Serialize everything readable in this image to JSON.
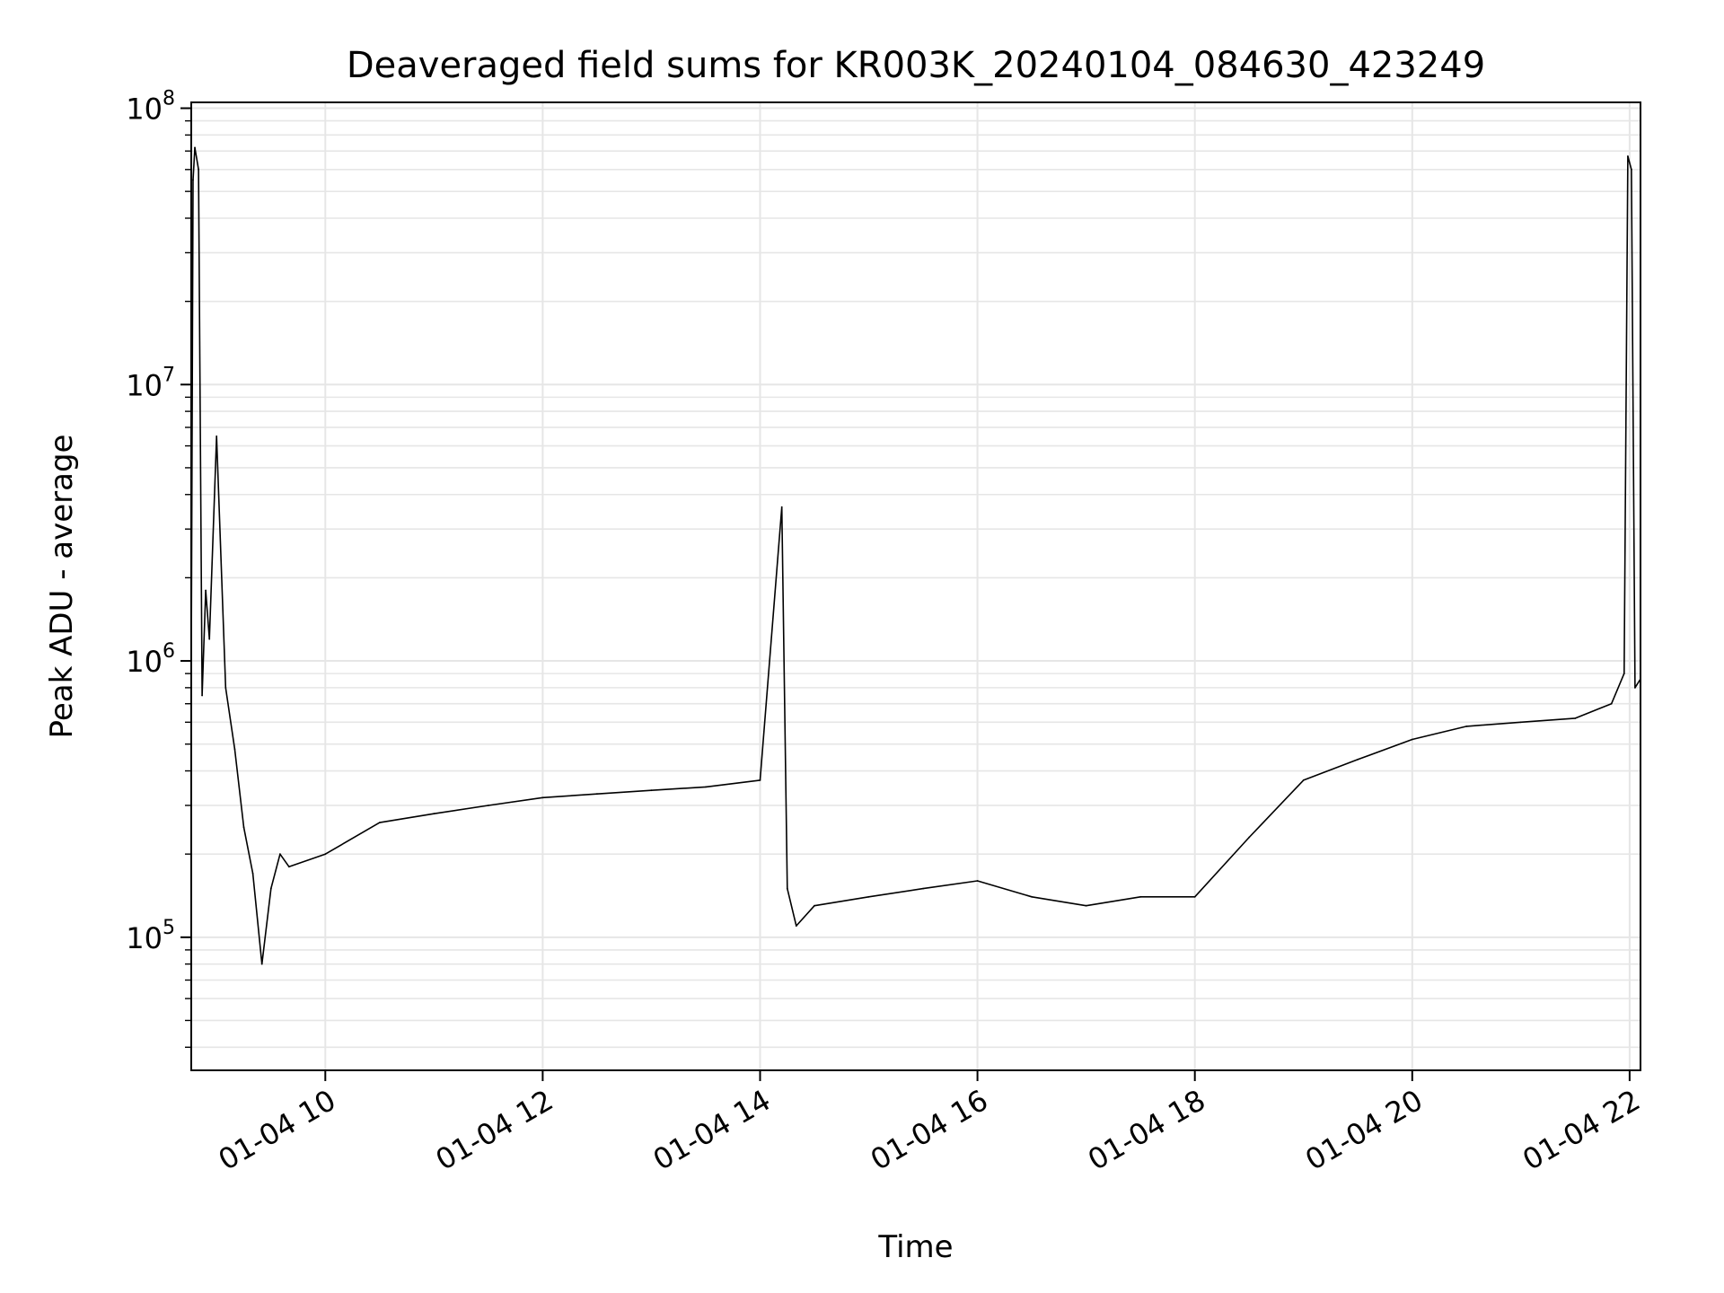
{
  "chart_data": {
    "type": "line",
    "title": "Deaveraged field sums for KR003K_20240104_084630_423249",
    "xlabel": "Time",
    "ylabel": "Peak ADU - average",
    "y_scale": "log",
    "ylim": [
      33000,
      105000000
    ],
    "xlim": [
      "2024-01-04 08:46",
      "2024-01-04 22:06"
    ],
    "x_ticks": [
      {
        "value": "2024-01-04 10:00",
        "label": "01-04 10"
      },
      {
        "value": "2024-01-04 12:00",
        "label": "01-04 12"
      },
      {
        "value": "2024-01-04 14:00",
        "label": "01-04 14"
      },
      {
        "value": "2024-01-04 16:00",
        "label": "01-04 16"
      },
      {
        "value": "2024-01-04 18:00",
        "label": "01-04 18"
      },
      {
        "value": "2024-01-04 20:00",
        "label": "01-04 20"
      },
      {
        "value": "2024-01-04 22:00",
        "label": "01-04 22"
      }
    ],
    "y_ticks": [
      {
        "value": 100000,
        "base": "10",
        "exp": "5"
      },
      {
        "value": 1000000,
        "base": "10",
        "exp": "6"
      },
      {
        "value": 10000000,
        "base": "10",
        "exp": "7"
      },
      {
        "value": 100000000,
        "base": "10",
        "exp": "8"
      }
    ],
    "grid": true,
    "line_color": "#000000",
    "grid_color": "#e6e6e6",
    "series": [
      {
        "x": [
          "2024-01-04 08:46",
          "2024-01-04 08:47",
          "2024-01-04 08:48",
          "2024-01-04 08:50",
          "2024-01-04 08:52",
          "2024-01-04 08:54",
          "2024-01-04 08:56",
          "2024-01-04 09:00",
          "2024-01-04 09:05",
          "2024-01-04 09:10",
          "2024-01-04 09:15",
          "2024-01-04 09:20",
          "2024-01-04 09:25",
          "2024-01-04 09:30",
          "2024-01-04 09:35",
          "2024-01-04 09:40",
          "2024-01-04 10:00",
          "2024-01-04 10:30",
          "2024-01-04 11:00",
          "2024-01-04 11:30",
          "2024-01-04 12:00",
          "2024-01-04 12:30",
          "2024-01-04 13:00",
          "2024-01-04 13:30",
          "2024-01-04 14:00",
          "2024-01-04 14:12",
          "2024-01-04 14:15",
          "2024-01-04 14:20",
          "2024-01-04 14:30",
          "2024-01-04 15:00",
          "2024-01-04 15:30",
          "2024-01-04 16:00",
          "2024-01-04 16:30",
          "2024-01-04 17:00",
          "2024-01-04 17:30",
          "2024-01-04 18:00",
          "2024-01-04 18:30",
          "2024-01-04 19:00",
          "2024-01-04 19:30",
          "2024-01-04 20:00",
          "2024-01-04 20:30",
          "2024-01-04 21:00",
          "2024-01-04 21:30",
          "2024-01-04 21:50",
          "2024-01-04 21:57",
          "2024-01-04 21:59",
          "2024-01-04 22:01",
          "2024-01-04 22:03",
          "2024-01-04 22:06"
        ],
        "y": [
          950000,
          55000000,
          72000000,
          60000000,
          750000,
          1800000,
          1200000,
          6500000,
          800000,
          480000,
          250000,
          170000,
          80000,
          150000,
          200000,
          180000,
          200000,
          260000,
          280000,
          300000,
          320000,
          330000,
          340000,
          350000,
          370000,
          3600000,
          150000,
          110000,
          130000,
          140000,
          150000,
          160000,
          140000,
          130000,
          140000,
          140000,
          230000,
          370000,
          440000,
          520000,
          580000,
          600000,
          620000,
          700000,
          900000,
          67000000,
          60000000,
          800000,
          860000
        ]
      }
    ]
  }
}
